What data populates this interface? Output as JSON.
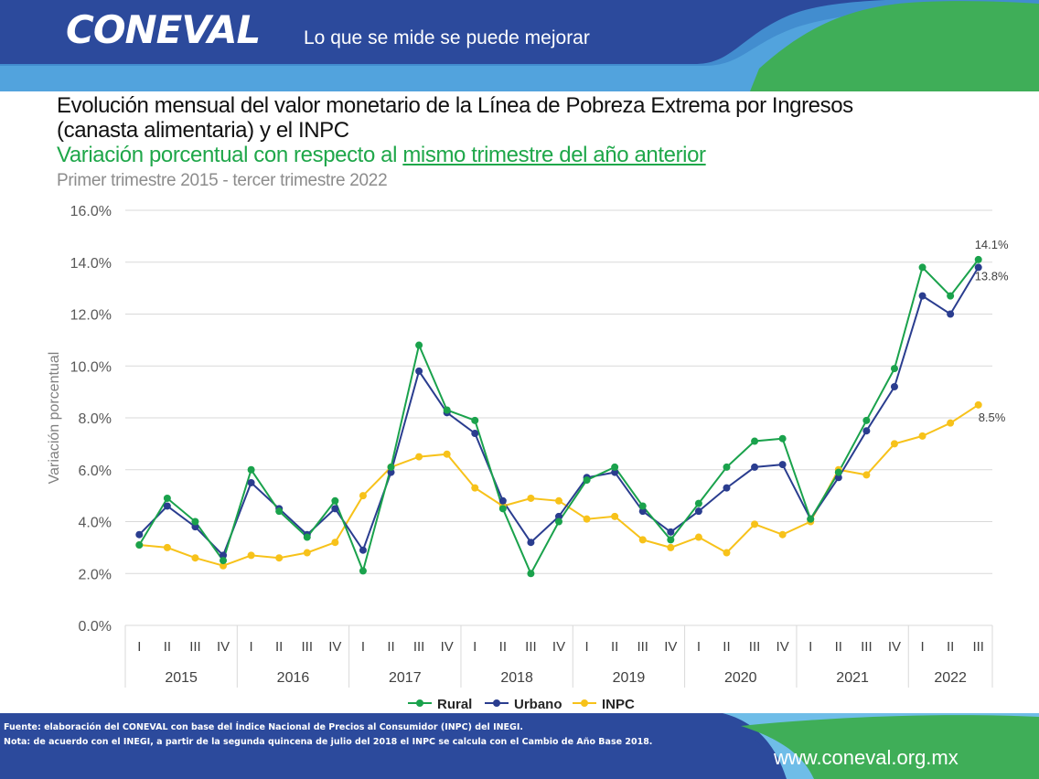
{
  "header": {
    "logo": "CONEVAL",
    "tagline": "Lo que se mide se puede mejorar"
  },
  "title_line1": "Evolución mensual del valor monetario de la Línea de Pobreza Extrema por Ingresos",
  "title_line2": "(canasta alimentaria) y el INPC",
  "subtitle_a": "Variación porcentual con respecto al ",
  "subtitle_b": "mismo trimestre del año anterior",
  "subtitle2": "Primer trimestre 2015 - tercer trimestre 2022",
  "colors": {
    "header_blue": "#2c4a9c",
    "green": "#1fa74a",
    "rural": "#1aa24c",
    "urbano": "#2a3d8f",
    "inpc": "#f7c21a"
  },
  "chart_data": {
    "type": "line",
    "ylabel": "Variación porcentual",
    "ylim": [
      0,
      16
    ],
    "y_ticks": [
      "0.0%",
      "2.0%",
      "4.0%",
      "6.0%",
      "8.0%",
      "10.0%",
      "12.0%",
      "14.0%",
      "16.0%"
    ],
    "years": [
      "2015",
      "2016",
      "2017",
      "2018",
      "2019",
      "2020",
      "2021",
      "2022"
    ],
    "quarters": [
      "I",
      "II",
      "III",
      "IV",
      "I",
      "II",
      "III",
      "IV",
      "I",
      "II",
      "III",
      "IV",
      "I",
      "II",
      "III",
      "IV",
      "I",
      "II",
      "III",
      "IV",
      "I",
      "II",
      "III",
      "IV",
      "I",
      "II",
      "III",
      "IV",
      "I",
      "II",
      "III"
    ],
    "grid": true,
    "legend_position": "bottom",
    "series": [
      {
        "name": "Rural",
        "color": "#1aa24c",
        "values": [
          3.1,
          4.9,
          4.0,
          2.5,
          6.0,
          4.4,
          3.4,
          4.8,
          2.1,
          6.1,
          10.8,
          8.3,
          7.9,
          4.5,
          2.0,
          4.0,
          5.6,
          6.1,
          4.6,
          3.3,
          4.7,
          6.1,
          7.1,
          7.2,
          4.1,
          5.9,
          7.9,
          9.9,
          13.8,
          12.7,
          14.1
        ]
      },
      {
        "name": "Urbano",
        "color": "#2a3d8f",
        "values": [
          3.5,
          4.6,
          3.8,
          2.7,
          5.5,
          4.5,
          3.5,
          4.5,
          2.9,
          5.9,
          9.8,
          8.2,
          7.4,
          4.8,
          3.2,
          4.2,
          5.7,
          5.9,
          4.4,
          3.6,
          4.4,
          5.3,
          6.1,
          6.2,
          4.1,
          5.7,
          7.5,
          9.2,
          12.7,
          12.0,
          13.8
        ]
      },
      {
        "name": "INPC",
        "color": "#f7c21a",
        "values": [
          3.1,
          3.0,
          2.6,
          2.3,
          2.7,
          2.6,
          2.8,
          3.2,
          5.0,
          6.1,
          6.5,
          6.6,
          5.3,
          4.6,
          4.9,
          4.8,
          4.1,
          4.2,
          3.3,
          3.0,
          3.4,
          2.8,
          3.9,
          3.5,
          4.0,
          6.0,
          5.8,
          7.0,
          7.3,
          7.8,
          8.5
        ]
      }
    ],
    "annotations": [
      "14.1%",
      "13.8%",
      "8.5%"
    ]
  },
  "footer": {
    "source": "Fuente: elaboración del CONEVAL con base del Índice Nacional de Precios al Consumidor (INPC) del INEGI.",
    "note": "Nota: de acuerdo con el INEGI, a partir de la segunda quincena de julio del 2018 el INPC se calcula con el Cambio de Año Base 2018.",
    "url": "www.coneval.org.mx"
  }
}
